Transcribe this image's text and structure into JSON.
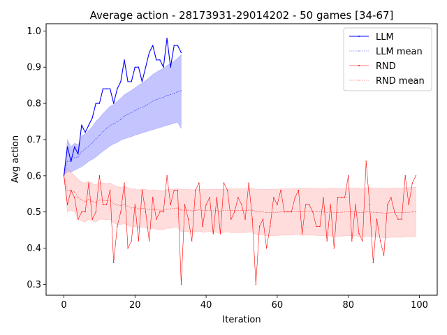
{
  "chart_data": {
    "type": "line",
    "title": "Average action - 28173931-29014202 - 50 games [34-67]",
    "xlabel": "Iteration",
    "ylabel": "Avg action",
    "xlim": [
      -5,
      105
    ],
    "ylim": [
      0.27,
      1.02
    ],
    "xticks": [
      0,
      20,
      40,
      60,
      80,
      100
    ],
    "yticks": [
      0.3,
      0.4,
      0.5,
      0.6,
      0.7,
      0.8,
      0.9,
      1.0
    ],
    "xtick_labels": [
      "0",
      "20",
      "40",
      "60",
      "80",
      "100"
    ],
    "ytick_labels": [
      "0.3",
      "0.4",
      "0.5",
      "0.6",
      "0.7",
      "0.8",
      "0.9",
      "1.0"
    ],
    "grid": false,
    "legend_position": "top-right",
    "series": [
      {
        "name": "LLM",
        "color": "#0000ff",
        "style": "solid",
        "x": [
          0,
          1,
          2,
          3,
          4,
          5,
          6,
          7,
          8,
          9,
          10,
          11,
          12,
          13,
          14,
          15,
          16,
          17,
          18,
          19,
          20,
          21,
          22,
          23,
          24,
          25,
          26,
          27,
          28,
          29,
          30,
          31,
          32,
          33
        ],
        "y": [
          0.6,
          0.68,
          0.64,
          0.68,
          0.66,
          0.74,
          0.72,
          0.74,
          0.76,
          0.8,
          0.8,
          0.84,
          0.84,
          0.84,
          0.8,
          0.84,
          0.86,
          0.92,
          0.86,
          0.86,
          0.9,
          0.9,
          0.86,
          0.9,
          0.94,
          0.96,
          0.92,
          0.92,
          0.9,
          0.98,
          0.9,
          0.96,
          0.96,
          0.94
        ]
      },
      {
        "name": "LLM mean",
        "color": "#0000ff",
        "style": "dotted",
        "x": [
          0,
          1,
          2,
          3,
          4,
          5,
          6,
          7,
          8,
          9,
          10,
          11,
          12,
          13,
          14,
          15,
          16,
          17,
          18,
          19,
          20,
          21,
          22,
          23,
          24,
          25,
          26,
          27,
          28,
          29,
          30,
          31,
          32,
          33
        ],
        "y": [
          0.6,
          0.64,
          0.64,
          0.65,
          0.652,
          0.667,
          0.674,
          0.682,
          0.691,
          0.702,
          0.711,
          0.722,
          0.731,
          0.739,
          0.743,
          0.749,
          0.756,
          0.765,
          0.77,
          0.774,
          0.78,
          0.785,
          0.789,
          0.794,
          0.8,
          0.806,
          0.81,
          0.814,
          0.817,
          0.822,
          0.824,
          0.828,
          0.832,
          0.835
        ],
        "band_upper": [
          0.6,
          0.7,
          0.68,
          0.69,
          0.686,
          0.71,
          0.716,
          0.725,
          0.736,
          0.75,
          0.76,
          0.772,
          0.782,
          0.792,
          0.797,
          0.806,
          0.814,
          0.824,
          0.83,
          0.836,
          0.843,
          0.85,
          0.856,
          0.863,
          0.871,
          0.88,
          0.886,
          0.892,
          0.897,
          0.905,
          0.91,
          0.917,
          0.925,
          0.935
        ],
        "band_lower": [
          0.6,
          0.61,
          0.61,
          0.615,
          0.62,
          0.625,
          0.632,
          0.64,
          0.645,
          0.652,
          0.66,
          0.668,
          0.675,
          0.682,
          0.688,
          0.692,
          0.698,
          0.702,
          0.705,
          0.708,
          0.712,
          0.715,
          0.718,
          0.721,
          0.724,
          0.727,
          0.73,
          0.733,
          0.736,
          0.739,
          0.742,
          0.745,
          0.748,
          0.73
        ]
      },
      {
        "name": "RND",
        "color": "#ff0000",
        "style": "solid",
        "x": [
          0,
          1,
          2,
          3,
          4,
          5,
          6,
          7,
          8,
          9,
          10,
          11,
          12,
          13,
          14,
          15,
          16,
          17,
          18,
          19,
          20,
          21,
          22,
          23,
          24,
          25,
          26,
          27,
          28,
          29,
          30,
          31,
          32,
          33,
          34,
          35,
          36,
          37,
          38,
          39,
          40,
          41,
          42,
          43,
          44,
          45,
          46,
          47,
          48,
          49,
          50,
          51,
          52,
          53,
          54,
          55,
          56,
          57,
          58,
          59,
          60,
          61,
          62,
          63,
          64,
          65,
          66,
          67,
          68,
          69,
          70,
          71,
          72,
          73,
          74,
          75,
          76,
          77,
          78,
          79,
          80,
          81,
          82,
          83,
          84,
          85,
          86,
          87,
          88,
          89,
          90,
          91,
          92,
          93,
          94,
          95,
          96,
          97,
          98,
          99
        ],
        "y": [
          0.6,
          0.52,
          0.56,
          0.54,
          0.48,
          0.5,
          0.5,
          0.58,
          0.48,
          0.5,
          0.6,
          0.52,
          0.52,
          0.56,
          0.36,
          0.46,
          0.5,
          0.58,
          0.4,
          0.42,
          0.52,
          0.42,
          0.56,
          0.5,
          0.42,
          0.54,
          0.48,
          0.5,
          0.5,
          0.6,
          0.52,
          0.56,
          0.56,
          0.3,
          0.52,
          0.48,
          0.42,
          0.56,
          0.58,
          0.46,
          0.52,
          0.54,
          0.44,
          0.54,
          0.44,
          0.58,
          0.56,
          0.48,
          0.5,
          0.54,
          0.52,
          0.48,
          0.58,
          0.48,
          0.3,
          0.46,
          0.48,
          0.4,
          0.46,
          0.54,
          0.52,
          0.56,
          0.5,
          0.5,
          0.5,
          0.54,
          0.56,
          0.44,
          0.52,
          0.52,
          0.5,
          0.46,
          0.46,
          0.54,
          0.42,
          0.52,
          0.4,
          0.54,
          0.54,
          0.54,
          0.6,
          0.42,
          0.52,
          0.44,
          0.42,
          0.64,
          0.52,
          0.36,
          0.48,
          0.42,
          0.38,
          0.52,
          0.54,
          0.5,
          0.48,
          0.48,
          0.6,
          0.52,
          0.58,
          0.6
        ]
      },
      {
        "name": "RND mean",
        "color": "#ff0000",
        "style": "dotted",
        "x": [
          0,
          1,
          2,
          3,
          4,
          5,
          6,
          7,
          8,
          9,
          10,
          11,
          12,
          13,
          14,
          15,
          16,
          17,
          18,
          19,
          20,
          21,
          22,
          23,
          24,
          25,
          26,
          27,
          28,
          29,
          30,
          31,
          32,
          33,
          34,
          35,
          36,
          37,
          38,
          39,
          40,
          41,
          42,
          43,
          44,
          45,
          46,
          47,
          48,
          49,
          50,
          51,
          52,
          53,
          54,
          55,
          56,
          57,
          58,
          59,
          60,
          61,
          62,
          63,
          64,
          65,
          66,
          67,
          68,
          69,
          70,
          71,
          72,
          73,
          74,
          75,
          76,
          77,
          78,
          79,
          80,
          81,
          82,
          83,
          84,
          85,
          86,
          87,
          88,
          89,
          90,
          91,
          92,
          93,
          94,
          95,
          96,
          97,
          98,
          99
        ],
        "y": [
          0.6,
          0.56,
          0.56,
          0.555,
          0.54,
          0.533,
          0.529,
          0.535,
          0.529,
          0.526,
          0.533,
          0.532,
          0.531,
          0.533,
          0.523,
          0.519,
          0.518,
          0.521,
          0.516,
          0.511,
          0.512,
          0.508,
          0.51,
          0.509,
          0.506,
          0.507,
          0.506,
          0.505,
          0.505,
          0.508,
          0.508,
          0.51,
          0.511,
          0.505,
          0.505,
          0.505,
          0.503,
          0.504,
          0.506,
          0.504,
          0.504,
          0.505,
          0.503,
          0.504,
          0.502,
          0.504,
          0.505,
          0.504,
          0.504,
          0.504,
          0.504,
          0.504,
          0.505,
          0.505,
          0.501,
          0.5,
          0.5,
          0.498,
          0.498,
          0.499,
          0.499,
          0.5,
          0.5,
          0.5,
          0.5,
          0.501,
          0.501,
          0.5,
          0.501,
          0.501,
          0.501,
          0.5,
          0.5,
          0.5,
          0.499,
          0.5,
          0.498,
          0.499,
          0.499,
          0.5,
          0.501,
          0.5,
          0.5,
          0.499,
          0.498,
          0.5,
          0.5,
          0.499,
          0.499,
          0.498,
          0.497,
          0.497,
          0.498,
          0.498,
          0.498,
          0.498,
          0.499,
          0.499,
          0.5,
          0.501
        ],
        "band_upper": [
          0.6,
          0.62,
          0.61,
          0.6,
          0.59,
          0.583,
          0.58,
          0.585,
          0.578,
          0.575,
          0.582,
          0.58,
          0.578,
          0.58,
          0.574,
          0.57,
          0.568,
          0.57,
          0.567,
          0.563,
          0.564,
          0.561,
          0.563,
          0.562,
          0.56,
          0.561,
          0.56,
          0.56,
          0.559,
          0.562,
          0.562,
          0.564,
          0.565,
          0.562,
          0.562,
          0.562,
          0.561,
          0.562,
          0.563,
          0.562,
          0.562,
          0.563,
          0.562,
          0.563,
          0.562,
          0.563,
          0.564,
          0.564,
          0.564,
          0.564,
          0.564,
          0.564,
          0.565,
          0.565,
          0.563,
          0.563,
          0.563,
          0.562,
          0.562,
          0.563,
          0.563,
          0.564,
          0.564,
          0.564,
          0.564,
          0.565,
          0.565,
          0.565,
          0.566,
          0.566,
          0.566,
          0.565,
          0.565,
          0.565,
          0.565,
          0.566,
          0.565,
          0.565,
          0.565,
          0.566,
          0.567,
          0.566,
          0.566,
          0.566,
          0.565,
          0.567,
          0.567,
          0.566,
          0.566,
          0.566,
          0.565,
          0.565,
          0.566,
          0.566,
          0.566,
          0.566,
          0.567,
          0.567,
          0.568,
          0.569
        ],
        "band_lower": [
          0.6,
          0.5,
          0.505,
          0.5,
          0.48,
          0.475,
          0.472,
          0.48,
          0.475,
          0.472,
          0.48,
          0.48,
          0.478,
          0.48,
          0.47,
          0.465,
          0.465,
          0.468,
          0.463,
          0.458,
          0.46,
          0.455,
          0.458,
          0.456,
          0.453,
          0.455,
          0.452,
          0.451,
          0.451,
          0.455,
          0.455,
          0.457,
          0.458,
          0.445,
          0.446,
          0.446,
          0.444,
          0.445,
          0.447,
          0.444,
          0.444,
          0.446,
          0.443,
          0.444,
          0.441,
          0.444,
          0.445,
          0.443,
          0.443,
          0.443,
          0.443,
          0.443,
          0.444,
          0.444,
          0.438,
          0.437,
          0.437,
          0.434,
          0.434,
          0.435,
          0.435,
          0.436,
          0.436,
          0.436,
          0.436,
          0.437,
          0.437,
          0.435,
          0.436,
          0.436,
          0.436,
          0.435,
          0.435,
          0.435,
          0.433,
          0.434,
          0.431,
          0.433,
          0.433,
          0.434,
          0.435,
          0.434,
          0.434,
          0.432,
          0.431,
          0.433,
          0.433,
          0.432,
          0.432,
          0.43,
          0.429,
          0.429,
          0.43,
          0.43,
          0.43,
          0.43,
          0.431,
          0.431,
          0.432,
          0.433
        ]
      }
    ]
  }
}
